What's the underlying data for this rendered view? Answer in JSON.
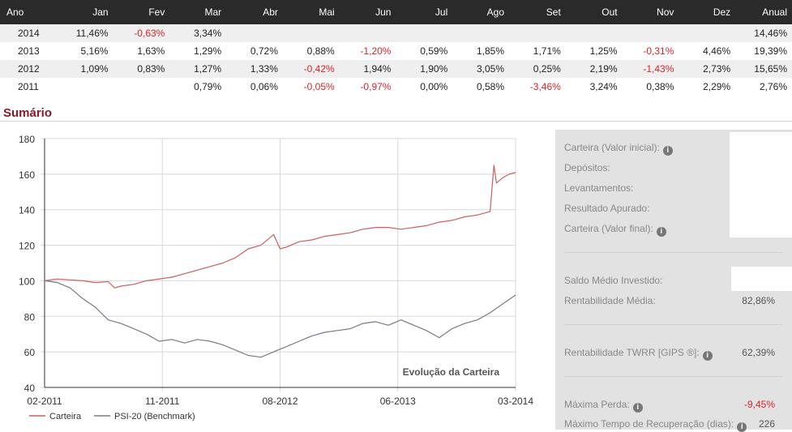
{
  "table": {
    "headers": [
      "Ano",
      "Jan",
      "Fev",
      "Mar",
      "Abr",
      "Mai",
      "Jun",
      "Jul",
      "Ago",
      "Set",
      "Out",
      "Nov",
      "Dez",
      "Anual"
    ],
    "rows": [
      [
        "2014",
        "11,46%",
        "-0,63%",
        "3,34%",
        "",
        "",
        "",
        "",
        "",
        "",
        "",
        "",
        "",
        "14,46%"
      ],
      [
        "2013",
        "5,16%",
        "1,63%",
        "1,29%",
        "0,72%",
        "0,88%",
        "-1,20%",
        "0,59%",
        "1,85%",
        "1,71%",
        "1,25%",
        "-0,31%",
        "4,46%",
        "19,39%"
      ],
      [
        "2012",
        "1,09%",
        "0,83%",
        "1,27%",
        "1,33%",
        "-0,42%",
        "1,94%",
        "1,90%",
        "3,05%",
        "0,25%",
        "2,19%",
        "-1,43%",
        "2,73%",
        "15,65%"
      ],
      [
        "2011",
        "",
        "",
        "0,79%",
        "0,06%",
        "-0,05%",
        "-0,97%",
        "0,00%",
        "0,58%",
        "-3,46%",
        "3,24%",
        "0,38%",
        "2,29%",
        "2,76%"
      ]
    ]
  },
  "section_title": "Sumário",
  "chart_data": {
    "type": "line",
    "title": "Evolução da Carteira",
    "x_ticks": [
      "02-2011",
      "11-2011",
      "08-2012",
      "06-2013",
      "03-2014"
    ],
    "ylim": [
      40,
      180
    ],
    "y_ticks": [
      40,
      60,
      80,
      100,
      120,
      140,
      160,
      180
    ],
    "grid": true,
    "legend": "bottom-left",
    "x_unit": "months since 02-2011",
    "xlim": [
      0,
      37
    ],
    "series": [
      {
        "name": "Carteira",
        "color": "#cc5f5f",
        "points": [
          [
            0,
            100
          ],
          [
            1,
            101
          ],
          [
            2,
            100.5
          ],
          [
            3,
            100
          ],
          [
            4,
            99
          ],
          [
            5,
            99.5
          ],
          [
            5.5,
            96
          ],
          [
            6,
            97
          ],
          [
            7,
            98
          ],
          [
            8,
            100
          ],
          [
            9,
            101
          ],
          [
            10,
            102
          ],
          [
            11,
            104
          ],
          [
            12,
            106
          ],
          [
            13,
            108
          ],
          [
            14,
            110
          ],
          [
            15,
            113
          ],
          [
            16,
            118
          ],
          [
            17,
            120
          ],
          [
            18,
            126
          ],
          [
            18.5,
            118
          ],
          [
            19,
            119
          ],
          [
            20,
            122
          ],
          [
            21,
            123
          ],
          [
            22,
            125
          ],
          [
            23,
            126
          ],
          [
            24,
            127
          ],
          [
            25,
            129
          ],
          [
            26,
            130
          ],
          [
            27,
            130
          ],
          [
            28,
            129
          ],
          [
            29,
            130
          ],
          [
            30,
            131
          ],
          [
            31,
            133
          ],
          [
            32,
            134
          ],
          [
            33,
            136
          ],
          [
            34,
            137
          ],
          [
            35,
            139
          ],
          [
            35.3,
            165
          ],
          [
            35.5,
            155
          ],
          [
            36,
            158
          ],
          [
            36.5,
            160
          ],
          [
            37,
            161
          ]
        ]
      },
      {
        "name": "PSI-20 (Benchmark)",
        "color": "#7a7a8a",
        "points": [
          [
            0,
            100
          ],
          [
            1,
            99
          ],
          [
            2,
            96
          ],
          [
            3,
            90
          ],
          [
            4,
            85
          ],
          [
            5,
            78
          ],
          [
            6,
            76
          ],
          [
            7,
            73
          ],
          [
            8,
            70
          ],
          [
            9,
            66
          ],
          [
            10,
            67
          ],
          [
            11,
            65
          ],
          [
            12,
            67
          ],
          [
            13,
            66
          ],
          [
            14,
            64
          ],
          [
            15,
            61
          ],
          [
            16,
            58
          ],
          [
            17,
            57
          ],
          [
            18,
            60
          ],
          [
            19,
            63
          ],
          [
            20,
            66
          ],
          [
            21,
            69
          ],
          [
            22,
            71
          ],
          [
            23,
            72
          ],
          [
            24,
            73
          ],
          [
            25,
            76
          ],
          [
            26,
            77
          ],
          [
            27,
            75
          ],
          [
            28,
            78
          ],
          [
            29,
            75
          ],
          [
            30,
            72
          ],
          [
            31,
            68
          ],
          [
            32,
            73
          ],
          [
            33,
            76
          ],
          [
            34,
            78
          ],
          [
            35,
            82
          ],
          [
            36,
            87
          ],
          [
            37,
            92
          ]
        ]
      }
    ]
  },
  "panel": {
    "carteira_inicial": "Carteira (Valor inicial):",
    "depositos": "Depósitos:",
    "levantamentos": "Levantamentos:",
    "resultado": "Resultado Apurado:",
    "carteira_final": "Carteira (Valor final):",
    "saldo_medio": "Saldo Médio Investido:",
    "rent_media_label": "Rentabilidade Média:",
    "rent_media_value": "82,86%",
    "twrr_label": "Rentabilidade TWRR [GIPS ®]:",
    "twrr_value": "62,39%",
    "max_perda_label": "Máxima Perda:",
    "max_perda_value": "-9,45%",
    "max_tempo_label": "Máximo Tempo de Recuperação (dias):",
    "max_tempo_value": "226"
  },
  "info_icon": "info-icon"
}
